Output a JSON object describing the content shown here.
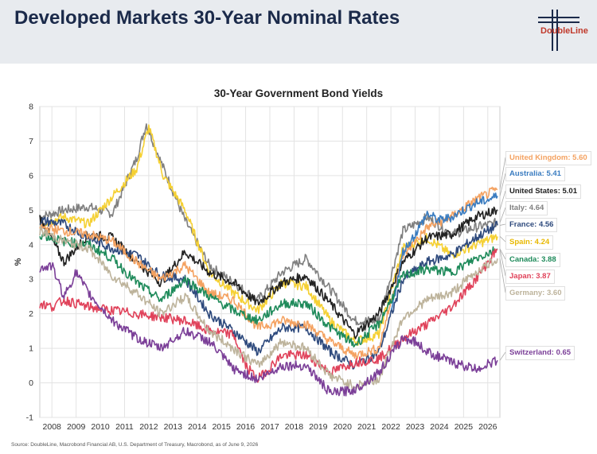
{
  "header": {
    "title": "Developed Markets 30-Year Nominal Rates",
    "logo_text": "DoubleLine"
  },
  "footer": {
    "source": "Source: DoubleLine, Macrobond Financial AB, U.S. Department of Treasury, Macrobond, as of June 9, 2026"
  },
  "chart_data": {
    "type": "line",
    "title": "30-Year Government Bond Yields",
    "ylabel": "%",
    "xlabel": "",
    "ylim": [
      -1,
      8
    ],
    "yticks": [
      "-1",
      "0",
      "1",
      "2",
      "3",
      "4",
      "5",
      "6",
      "7",
      "8"
    ],
    "xlim": [
      2007.5,
      2026.5
    ],
    "xticks": [
      "2008",
      "2009",
      "2010",
      "2011",
      "2012",
      "2013",
      "2014",
      "2015",
      "2016",
      "2017",
      "2018",
      "2019",
      "2020",
      "2021",
      "2022",
      "2023",
      "2024",
      "2025",
      "2026"
    ],
    "grid": true,
    "series": [
      {
        "name": "Italy",
        "color": "#7f7f7f",
        "label": "Italy: 4.64",
        "x": [
          2007.5,
          2008.5,
          2009.5,
          2010.5,
          2011.5,
          2011.9,
          2012.5,
          2013.5,
          2014.5,
          2015.5,
          2016.5,
          2017.5,
          2018.5,
          2019.5,
          2020.5,
          2021.5,
          2022.5,
          2023.5,
          2024.5,
          2025.5,
          2026.4
        ],
        "y": [
          4.8,
          5.0,
          5.1,
          4.9,
          6.5,
          7.5,
          6.4,
          4.7,
          3.4,
          2.9,
          2.4,
          3.2,
          3.6,
          2.7,
          1.8,
          1.8,
          4.4,
          4.8,
          4.3,
          4.5,
          4.64
        ]
      },
      {
        "name": "Spain",
        "color": "#f5d033",
        "label": "Spain: 4.24",
        "x": [
          2007.5,
          2008.5,
          2009.5,
          2010.5,
          2011.5,
          2012.0,
          2012.6,
          2013.5,
          2014.5,
          2015.5,
          2016.5,
          2017.5,
          2018.5,
          2019.5,
          2020.5,
          2021.5,
          2022.5,
          2023.5,
          2024.5,
          2025.5,
          2026.4
        ],
        "y": [
          4.6,
          4.8,
          4.6,
          5.4,
          6.2,
          7.4,
          6.0,
          5.0,
          3.2,
          2.6,
          2.1,
          2.9,
          2.8,
          1.8,
          1.2,
          1.4,
          3.9,
          4.2,
          3.7,
          4.0,
          4.24
        ]
      },
      {
        "name": "United States",
        "color": "#222222",
        "label": "United States: 5.01",
        "x": [
          2007.5,
          2008.5,
          2009.5,
          2010.5,
          2011.5,
          2012.5,
          2013.5,
          2014.5,
          2015.5,
          2016.5,
          2017.5,
          2018.5,
          2019.5,
          2020.5,
          2021.5,
          2022.5,
          2023.5,
          2024.5,
          2025.5,
          2026.4
        ],
        "y": [
          4.8,
          3.5,
          4.3,
          4.2,
          3.5,
          2.9,
          3.8,
          3.2,
          2.9,
          2.3,
          2.9,
          3.1,
          2.3,
          1.4,
          2.0,
          3.5,
          4.2,
          4.3,
          4.8,
          5.01
        ]
      },
      {
        "name": "France",
        "color": "#2e4a7d",
        "label": "France: 4.56",
        "x": [
          2007.5,
          2008.5,
          2009.5,
          2010.5,
          2011.5,
          2012.5,
          2013.5,
          2014.5,
          2015.5,
          2016.5,
          2017.5,
          2018.5,
          2019.5,
          2020.5,
          2021.5,
          2022.5,
          2023.5,
          2024.5,
          2025.5,
          2026.4
        ],
        "y": [
          4.7,
          4.6,
          4.2,
          3.9,
          3.7,
          3.1,
          3.0,
          2.0,
          1.5,
          0.9,
          1.6,
          1.6,
          0.9,
          0.5,
          0.9,
          3.0,
          3.5,
          3.7,
          4.2,
          4.56
        ]
      },
      {
        "name": "United Kingdom",
        "color": "#f4a261",
        "label": "United Kingdom: 5.60",
        "x": [
          2007.5,
          2008.5,
          2009.5,
          2010.5,
          2011.5,
          2012.5,
          2013.5,
          2014.5,
          2015.5,
          2016.5,
          2017.5,
          2018.5,
          2019.5,
          2020.5,
          2021.5,
          2022.5,
          2023.5,
          2024.5,
          2025.5,
          2026.4
        ],
        "y": [
          4.5,
          4.4,
          4.3,
          4.1,
          3.5,
          3.0,
          3.4,
          2.6,
          2.4,
          1.6,
          1.8,
          1.7,
          1.2,
          0.8,
          1.0,
          3.7,
          4.5,
          4.8,
          5.3,
          5.6
        ]
      },
      {
        "name": "Australia",
        "color": "#3a7cc0",
        "label": "Australia: 5.41",
        "x": [
          2022.0,
          2022.5,
          2023.0,
          2023.5,
          2024.0,
          2024.5,
          2025.0,
          2025.5,
          2026.0,
          2026.4
        ],
        "y": [
          2.0,
          3.8,
          4.3,
          4.9,
          4.7,
          4.8,
          5.0,
          5.2,
          5.3,
          5.41
        ]
      },
      {
        "name": "Canada",
        "color": "#1e8a5a",
        "label": "Canada: 3.88",
        "x": [
          2007.5,
          2008.5,
          2009.5,
          2010.5,
          2011.5,
          2012.5,
          2013.5,
          2014.5,
          2015.5,
          2016.5,
          2017.5,
          2018.5,
          2019.5,
          2020.5,
          2021.5,
          2022.5,
          2023.5,
          2024.5,
          2025.5,
          2026.4
        ],
        "y": [
          4.3,
          4.1,
          4.0,
          3.6,
          2.9,
          2.4,
          3.0,
          2.5,
          2.1,
          1.8,
          2.3,
          2.3,
          1.6,
          1.1,
          1.7,
          3.1,
          3.3,
          3.2,
          3.6,
          3.88
        ]
      },
      {
        "name": "Japan",
        "color": "#e0425a",
        "label": "Japan: 3.87",
        "x": [
          2007.5,
          2008.0,
          2008.5,
          2009.5,
          2010.5,
          2011.5,
          2012.5,
          2013.5,
          2014.5,
          2015.5,
          2016.0,
          2016.5,
          2017.5,
          2018.5,
          2019.5,
          2020.5,
          2021.5,
          2022.5,
          2023.5,
          2024.5,
          2025.5,
          2026.4
        ],
        "y": [
          2.3,
          2.2,
          2.4,
          2.2,
          2.1,
          2.0,
          1.9,
          1.8,
          1.5,
          1.4,
          0.5,
          0.1,
          0.8,
          0.8,
          0.3,
          0.6,
          0.7,
          1.3,
          1.7,
          2.2,
          3.0,
          3.87
        ]
      },
      {
        "name": "Germany",
        "color": "#bdb39b",
        "label": "Germany: 3.60",
        "x": [
          2007.5,
          2008.5,
          2009.5,
          2010.5,
          2011.5,
          2012.5,
          2013.5,
          2014.5,
          2015.5,
          2016.5,
          2017.5,
          2018.5,
          2019.5,
          2020.5,
          2021.5,
          2022.5,
          2023.5,
          2024.5,
          2025.5,
          2026.4
        ],
        "y": [
          4.4,
          4.1,
          3.9,
          3.1,
          2.6,
          2.0,
          2.5,
          1.5,
          1.0,
          0.5,
          1.2,
          1.0,
          0.2,
          -0.1,
          0.1,
          1.9,
          2.4,
          2.6,
          3.2,
          3.6
        ]
      },
      {
        "name": "Switzerland",
        "color": "#7b3f98",
        "label": "Switzerland: 0.65",
        "x": [
          2007.5,
          2008.0,
          2008.5,
          2009.0,
          2009.5,
          2010.5,
          2011.5,
          2012.5,
          2013.5,
          2014.5,
          2015.5,
          2016.5,
          2017.5,
          2018.5,
          2019.5,
          2020.5,
          2021.5,
          2022.5,
          2023.0,
          2023.5,
          2024.5,
          2025.5,
          2026.4
        ],
        "y": [
          3.3,
          3.4,
          2.5,
          3.2,
          2.6,
          1.8,
          1.3,
          1.0,
          1.5,
          1.2,
          0.4,
          0.1,
          0.5,
          0.5,
          -0.3,
          -0.2,
          0.3,
          1.3,
          1.2,
          0.9,
          0.6,
          0.4,
          0.65
        ]
      }
    ]
  }
}
